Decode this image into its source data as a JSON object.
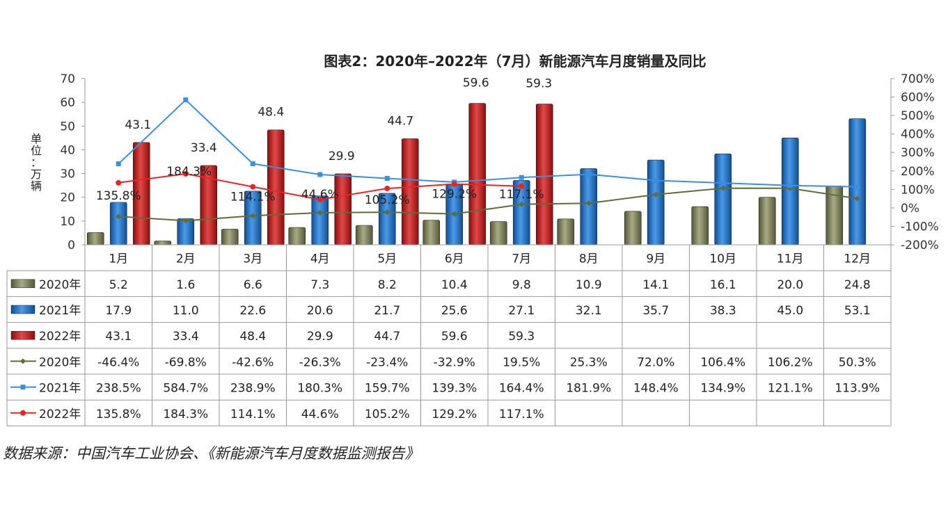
{
  "chart_data": {
    "type": "bar",
    "title": "图表2：2020年–2022年（7月）新能源汽车月度销量及同比",
    "ylabel": "单位：万辆",
    "ylim": [
      0,
      70
    ],
    "yticks": [
      "0",
      "10",
      "20",
      "30",
      "40",
      "50",
      "60",
      "70"
    ],
    "y2lim": [
      -200,
      700
    ],
    "y2ticks": [
      "-200%",
      "-100%",
      "0%",
      "100%",
      "200%",
      "300%",
      "400%",
      "500%",
      "600%",
      "700%"
    ],
    "categories": [
      "1月",
      "2月",
      "3月",
      "4月",
      "5月",
      "6月",
      "7月",
      "8月",
      "9月",
      "10月",
      "11月",
      "12月"
    ],
    "series": [
      {
        "name": "2020年",
        "kind": "bar",
        "color": "#7a7d56",
        "values": [
          5.2,
          1.6,
          6.6,
          7.3,
          8.2,
          10.4,
          9.8,
          10.9,
          14.1,
          16.1,
          20.0,
          24.8
        ],
        "labels": [
          "5.2",
          "1.6",
          "6.6",
          "7.3",
          "8.2",
          "10.4",
          "9.8",
          "10.9",
          "14.1",
          "16.1",
          "20.0",
          "24.8"
        ]
      },
      {
        "name": "2021年",
        "kind": "bar",
        "color": "#1f6fc4",
        "values": [
          17.9,
          11.0,
          22.6,
          20.6,
          21.7,
          25.6,
          27.1,
          32.1,
          35.7,
          38.3,
          45.0,
          53.1
        ],
        "labels": [
          "17.9",
          "11.0",
          "22.6",
          "20.6",
          "21.7",
          "25.6",
          "27.1",
          "32.1",
          "35.7",
          "38.3",
          "45.0",
          "53.1"
        ]
      },
      {
        "name": "2022年",
        "kind": "bar",
        "color": "#c41a1a",
        "values": [
          43.1,
          33.4,
          48.4,
          29.9,
          44.7,
          59.6,
          59.3,
          null,
          null,
          null,
          null,
          null
        ],
        "labels": [
          "43.1",
          "33.4",
          "48.4",
          "29.9",
          "44.7",
          "59.6",
          "59.3",
          "",
          "",
          "",
          "",
          ""
        ]
      },
      {
        "name": "2020年",
        "kind": "line",
        "color": "#5e6b3a",
        "marker": "diamond",
        "values": [
          -46.4,
          -69.8,
          -42.6,
          -26.3,
          -23.4,
          -32.9,
          19.5,
          25.3,
          72.0,
          106.4,
          106.2,
          50.3
        ],
        "labels": [
          "-46.4%",
          "-69.8%",
          "-42.6%",
          "-26.3%",
          "-23.4%",
          "-32.9%",
          "19.5%",
          "25.3%",
          "72.0%",
          "106.4%",
          "106.2%",
          "50.3%"
        ]
      },
      {
        "name": "2021年",
        "kind": "line",
        "color": "#3a8fe0",
        "marker": "square",
        "values": [
          238.5,
          584.7,
          238.9,
          180.3,
          159.7,
          139.3,
          164.4,
          181.9,
          148.4,
          134.9,
          121.1,
          113.9
        ],
        "labels": [
          "238.5%",
          "584.7%",
          "238.9%",
          "180.3%",
          "159.7%",
          "139.3%",
          "164.4%",
          "181.9%",
          "148.4%",
          "134.9%",
          "121.1%",
          "113.9%"
        ]
      },
      {
        "name": "2022年",
        "kind": "line",
        "color": "#ee2222",
        "marker": "circle",
        "values": [
          135.8,
          184.3,
          114.1,
          44.6,
          105.2,
          129.2,
          117.1,
          null,
          null,
          null,
          null,
          null
        ],
        "labels": [
          "135.8%",
          "184.3%",
          "114.1%",
          "44.6%",
          "105.2%",
          "129.2%",
          "117.1%",
          "",
          "",
          "",
          "",
          ""
        ]
      }
    ]
  },
  "source_note": "数据来源：中国汽车工业协会、《新能源汽车月度数据监测报告》"
}
